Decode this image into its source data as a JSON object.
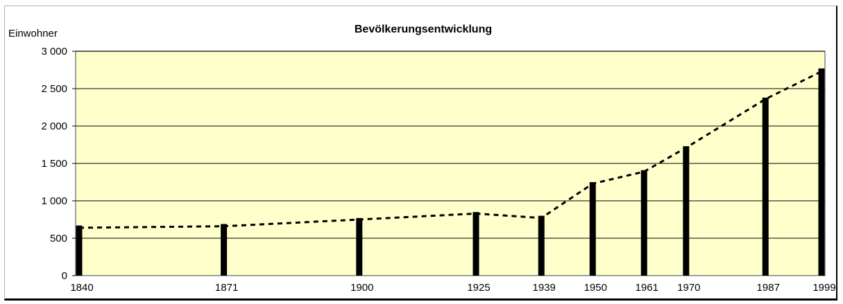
{
  "chart_data": {
    "type": "bar",
    "title": "Bevölkerungsentwicklung",
    "ylabel": "Einwohner",
    "xlabel": "",
    "x": [
      1840,
      1871,
      1900,
      1925,
      1939,
      1950,
      1961,
      1970,
      1987,
      1999
    ],
    "x_tick_labels": [
      "1840",
      "1871",
      "1900",
      "1925",
      "1939",
      "1950",
      "1961",
      "1970",
      "1987",
      "1999"
    ],
    "values": [
      670,
      690,
      770,
      850,
      800,
      1250,
      1410,
      1730,
      2380,
      2770
    ],
    "trend_line": {
      "style": "dashed",
      "values": [
        640,
        660,
        750,
        830,
        770,
        1230,
        1390,
        1710,
        2360,
        2730
      ]
    },
    "xlim": [
      1840,
      1999
    ],
    "ylim": [
      0,
      3000
    ],
    "y_ticks": [
      0,
      500,
      1000,
      1500,
      2000,
      2500,
      3000
    ],
    "y_tick_labels": [
      "0",
      "500",
      "1 000",
      "1 500",
      "2 000",
      "2 500",
      "3 000"
    ],
    "grid": true,
    "legend": "none",
    "colors": {
      "plot_background": "#ffffcc",
      "bar": "#000000",
      "grid": "#000000",
      "trend_line": "#000000"
    }
  }
}
